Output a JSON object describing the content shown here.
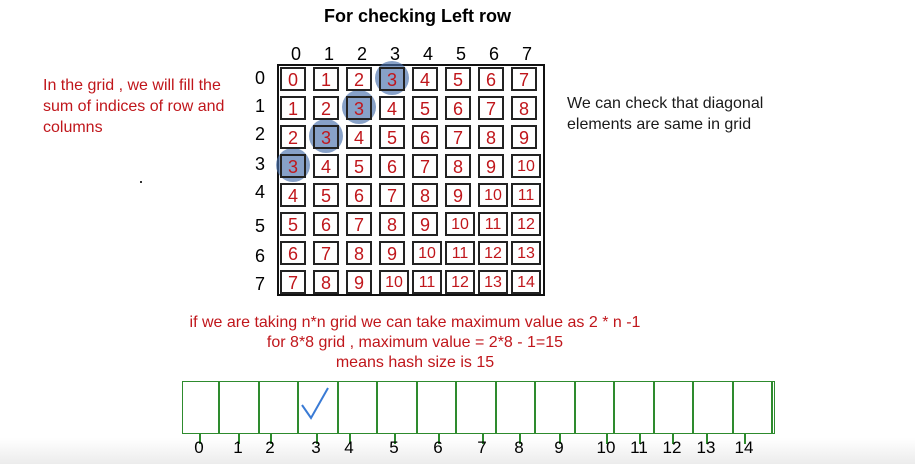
{
  "title": "For checking Left row",
  "left_note": "In the grid , we will fill the sum of indices of row and columns",
  "right_note": "We can check that  diagonal elements are same in grid",
  "column_indices": [
    "0",
    "1",
    "2",
    "3",
    "4",
    "5",
    "6",
    "7"
  ],
  "row_indices": [
    "0",
    "1",
    "2",
    "3",
    "4",
    "5",
    "6",
    "7"
  ],
  "grid": [
    [
      "0",
      "1",
      "2",
      "3",
      "4",
      "5",
      "6",
      "7"
    ],
    [
      "1",
      "2",
      "3",
      "4",
      "5",
      "6",
      "7",
      "8"
    ],
    [
      "2",
      "3",
      "4",
      "5",
      "6",
      "7",
      "8",
      "9"
    ],
    [
      "3",
      "4",
      "5",
      "6",
      "7",
      "8",
      "9",
      "10"
    ],
    [
      "4",
      "5",
      "6",
      "7",
      "8",
      "9",
      "10",
      "11"
    ],
    [
      "5",
      "6",
      "7",
      "8",
      "9",
      "10",
      "11",
      "12"
    ],
    [
      "6",
      "7",
      "8",
      "9",
      "10",
      "11",
      "12",
      "13"
    ],
    [
      "7",
      "8",
      "9",
      "10",
      "11",
      "12",
      "13",
      "14"
    ]
  ],
  "highlighted_cells": [
    [
      0,
      3
    ],
    [
      1,
      2
    ],
    [
      2,
      1
    ],
    [
      3,
      0
    ]
  ],
  "formula_lines": [
    "if we are taking n*n grid we can take maximum value as 2 * n -1",
    "for 8*8 grid , maximum value = 2*8 - 1=15",
    "means hash size is 15"
  ],
  "hash_indices": [
    "0",
    "1",
    "2",
    "3",
    "4",
    "5",
    "6",
    "7",
    "8",
    "9",
    "10",
    "11",
    "12",
    "13",
    "14"
  ],
  "hash_checked_slot": 3,
  "check_icon": "checkmark-icon",
  "colors": {
    "grid_text": "#c0161b",
    "highlight": "#466eaa",
    "hash_border": "#2e8b2e",
    "check": "#3a7bd5"
  }
}
